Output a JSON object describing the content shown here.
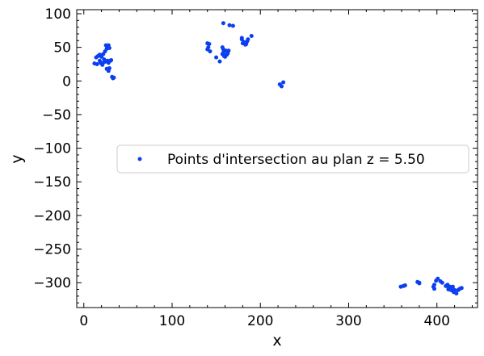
{
  "chart_data": {
    "type": "scatter",
    "title": "",
    "xlabel": "x",
    "ylabel": "y",
    "xlim": [
      -8,
      446
    ],
    "ylim": [
      -337,
      106
    ],
    "xticks": [
      0,
      100,
      200,
      300,
      400
    ],
    "xtick_labels": [
      "0",
      "100",
      "200",
      "300",
      "400"
    ],
    "yticks": [
      100,
      50,
      0,
      -50,
      -100,
      -150,
      -200,
      -250,
      -300
    ],
    "ytick_labels": [
      "100",
      "50",
      "0",
      "−50",
      "−100",
      "−150",
      "−200",
      "−250",
      "−300"
    ],
    "grid": false,
    "legend_position": "center-right",
    "series": [
      {
        "name": "Points d'intersection au plan z = 5.50",
        "color": "#0b3ff0",
        "points": [
          [
            12,
            26
          ],
          [
            15,
            25
          ],
          [
            14,
            35
          ],
          [
            16,
            37
          ],
          [
            18,
            39
          ],
          [
            20,
            36
          ],
          [
            22,
            40
          ],
          [
            24,
            44
          ],
          [
            26,
            48
          ],
          [
            25,
            53
          ],
          [
            27,
            51
          ],
          [
            28,
            53
          ],
          [
            29,
            49
          ],
          [
            19,
            27
          ],
          [
            21,
            24
          ],
          [
            23,
            28
          ],
          [
            25,
            29
          ],
          [
            27,
            30
          ],
          [
            28,
            27
          ],
          [
            30,
            30
          ],
          [
            31,
            31
          ],
          [
            26,
            18
          ],
          [
            28,
            15
          ],
          [
            32,
            6
          ],
          [
            33,
            4
          ],
          [
            34,
            5
          ],
          [
            18,
            30
          ],
          [
            23,
            32
          ],
          [
            29,
            19
          ],
          [
            140,
            56
          ],
          [
            142,
            55
          ],
          [
            141,
            50
          ],
          [
            140,
            47
          ],
          [
            143,
            44
          ],
          [
            150,
            35
          ],
          [
            154,
            29
          ],
          [
            157,
            40
          ],
          [
            158,
            42
          ],
          [
            159,
            37
          ],
          [
            160,
            36
          ],
          [
            162,
            39
          ],
          [
            163,
            41
          ],
          [
            164,
            45
          ],
          [
            158,
            47
          ],
          [
            161,
            45
          ],
          [
            157,
            50
          ],
          [
            163,
            44
          ],
          [
            179,
            62
          ],
          [
            181,
            58
          ],
          [
            180,
            56
          ],
          [
            183,
            54
          ],
          [
            185,
            59
          ],
          [
            186,
            62
          ],
          [
            190,
            67
          ],
          [
            179,
            64
          ],
          [
            184,
            55
          ],
          [
            158,
            86
          ],
          [
            165,
            83
          ],
          [
            169,
            82
          ],
          [
            222,
            -5
          ],
          [
            224,
            -8
          ],
          [
            226,
            -2
          ],
          [
            359,
            -306
          ],
          [
            362,
            -305
          ],
          [
            364,
            -304
          ],
          [
            378,
            -299
          ],
          [
            380,
            -301
          ],
          [
            380,
            -300
          ],
          [
            396,
            -306
          ],
          [
            397,
            -303
          ],
          [
            399,
            -297
          ],
          [
            401,
            -294
          ],
          [
            404,
            -298
          ],
          [
            397,
            -309
          ],
          [
            412,
            -303
          ],
          [
            413,
            -307
          ],
          [
            415,
            -306
          ],
          [
            413,
            -310
          ],
          [
            416,
            -311
          ],
          [
            418,
            -312
          ],
          [
            420,
            -311
          ],
          [
            419,
            -314
          ],
          [
            422,
            -316
          ],
          [
            424,
            -311
          ],
          [
            426,
            -309
          ],
          [
            428,
            -308
          ],
          [
            418,
            -306
          ],
          [
            410,
            -305
          ],
          [
            406,
            -300
          ]
        ]
      }
    ]
  }
}
